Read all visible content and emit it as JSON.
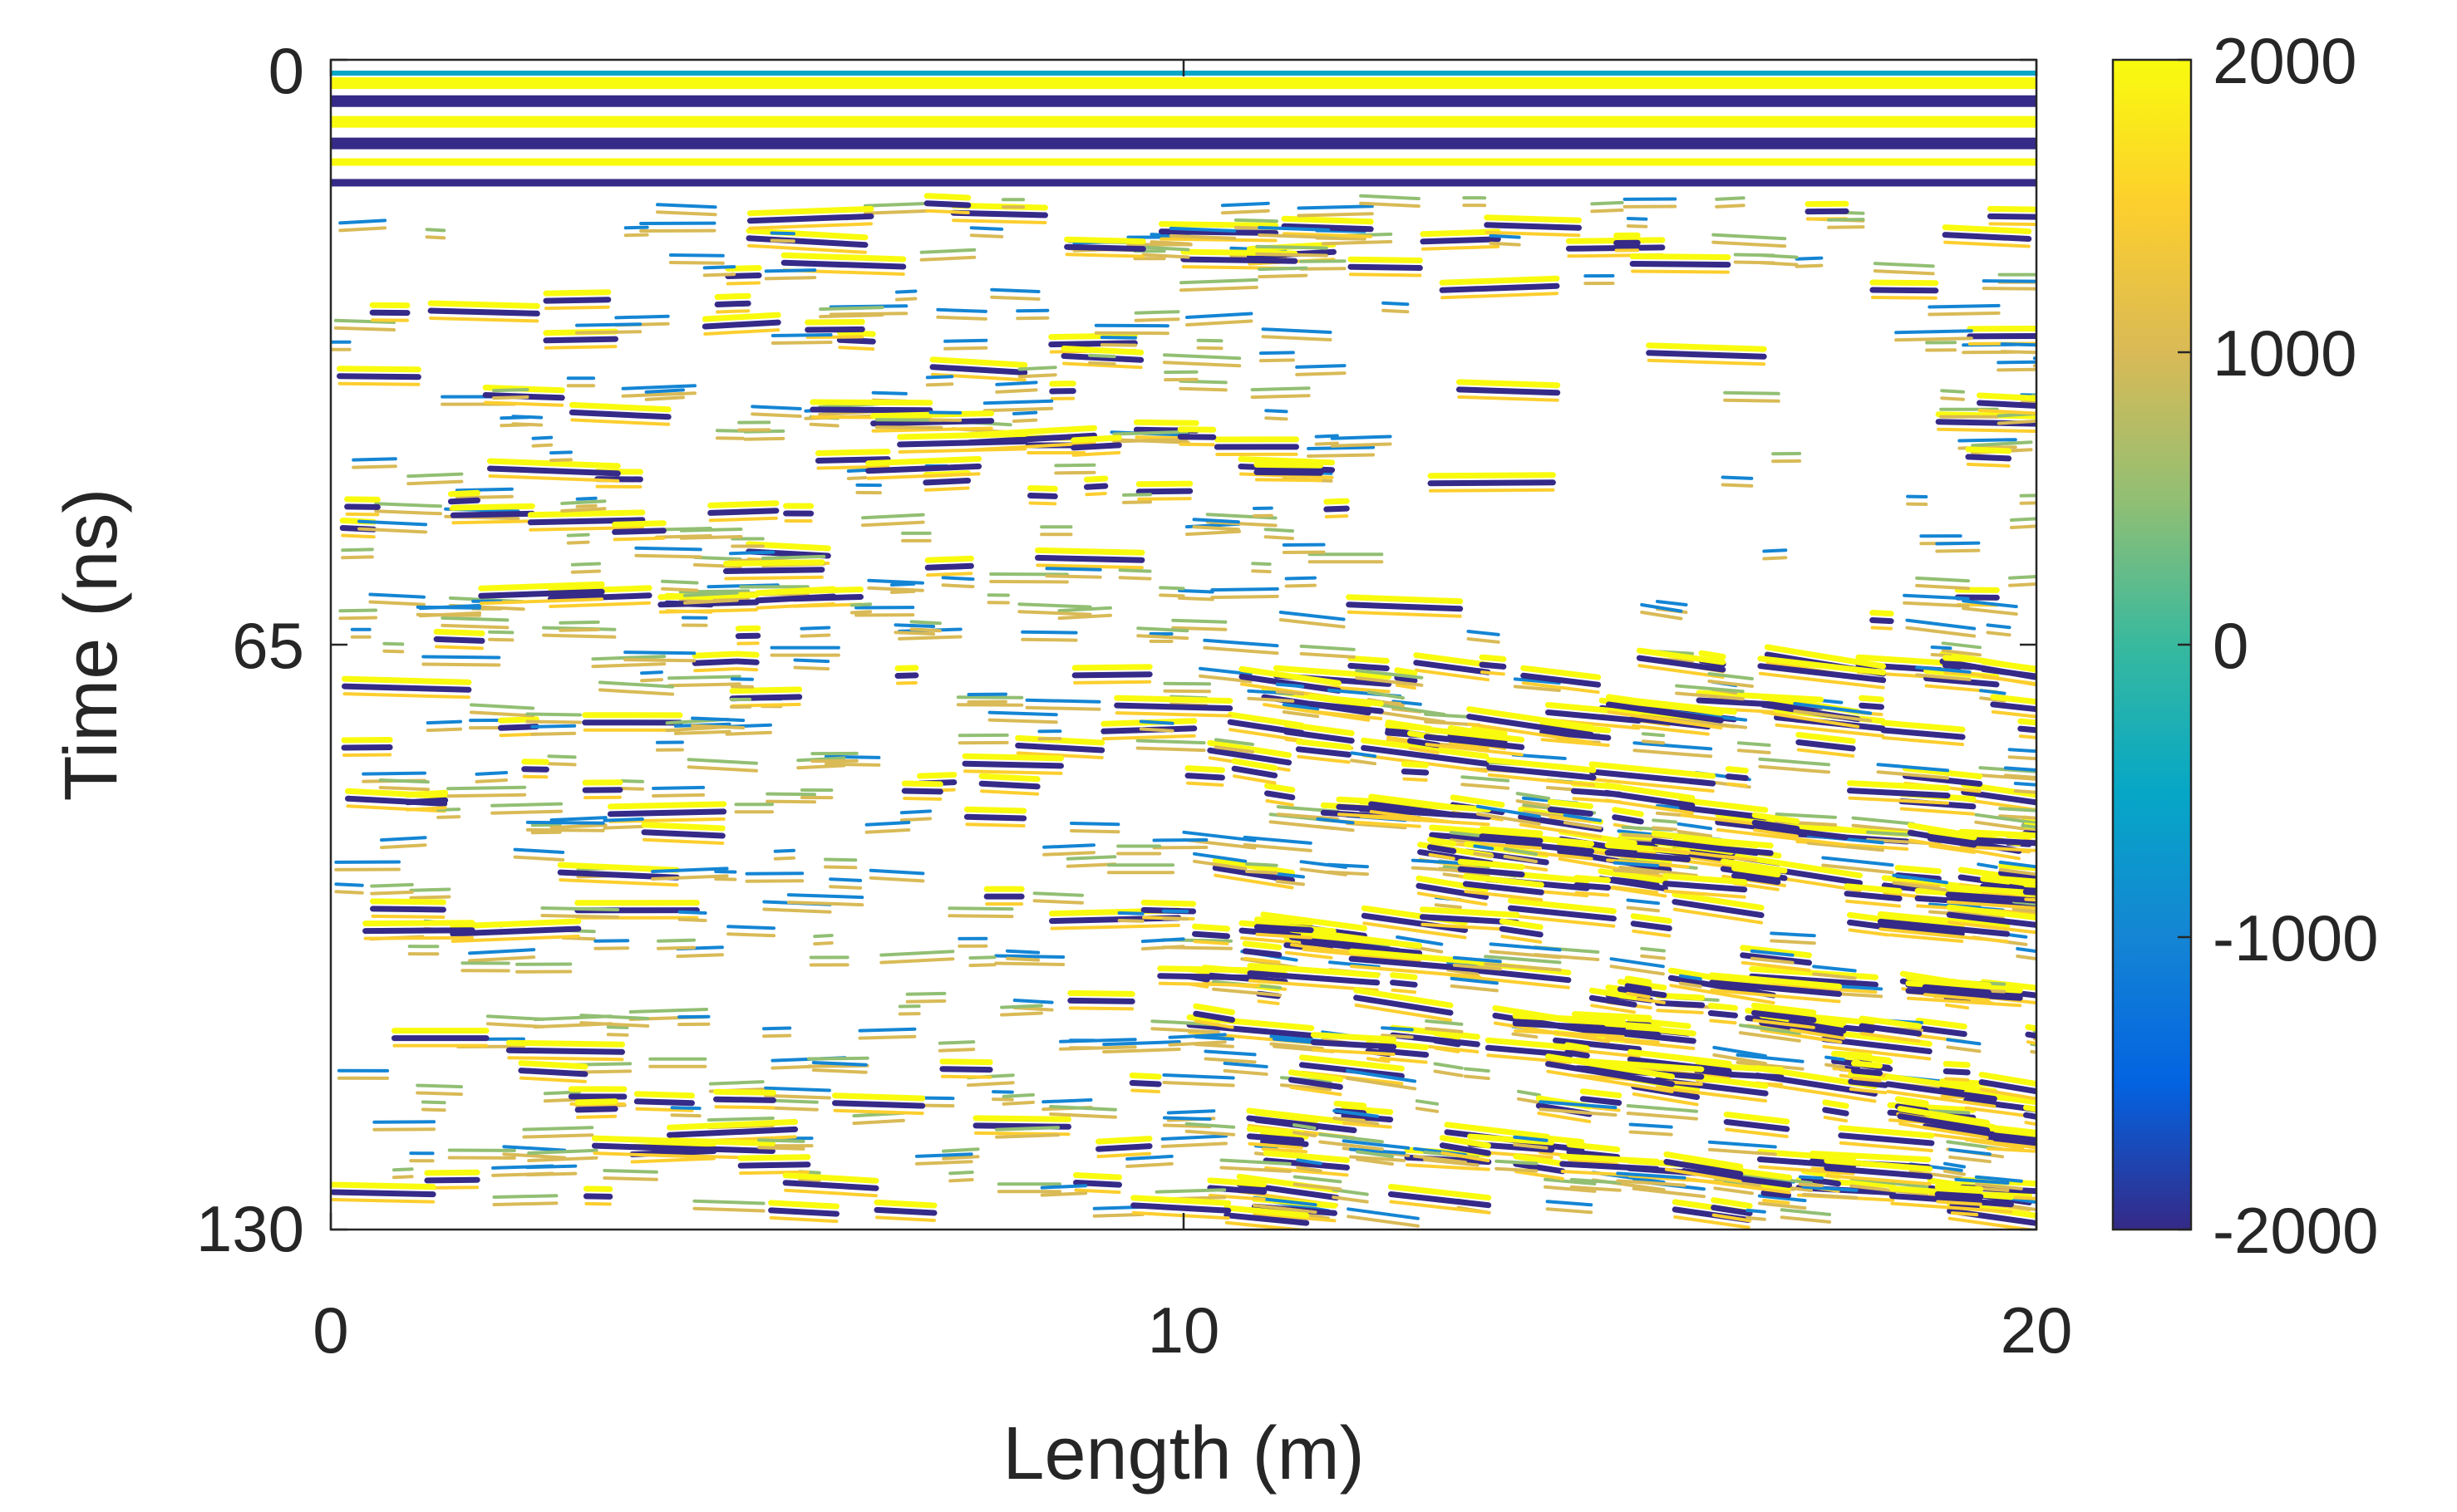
{
  "chart_data": {
    "type": "heatmap",
    "subtype": "filled contour (GPR radargram)",
    "title": "",
    "xlabel": "Length (m)",
    "ylabel": "Time (ns)",
    "xlim": [
      0,
      20
    ],
    "ylim": [
      0,
      130
    ],
    "y_direction": "reversed",
    "x_ticks": [
      0,
      10,
      20
    ],
    "x_tick_labels": [
      "0",
      "10",
      "20"
    ],
    "y_ticks": [
      0,
      65,
      130
    ],
    "y_tick_labels": [
      "0",
      "65",
      "130"
    ],
    "grid": false,
    "box": true,
    "colorbar": {
      "location": "right",
      "colormap": "parula",
      "clim": [
        -2000,
        2000
      ],
      "ticks": [
        2000,
        1000,
        0,
        -1000,
        -2000
      ],
      "tick_labels": [
        "2000",
        "1000",
        "0",
        "-1000",
        "-2000"
      ]
    },
    "data_description": {
      "quantity": "signal amplitude",
      "value_range": [
        -2000,
        2000
      ],
      "features": [
        {
          "kind": "strong horizontal reflections",
          "time_ns": [
            2,
            15
          ],
          "length_m": [
            0,
            20
          ]
        },
        {
          "kind": "sparse region (low amplitude)",
          "time_ns": [
            27,
            65
          ],
          "length_m": [
            12,
            18
          ]
        },
        {
          "kind": "dense dipping reflections",
          "time_ns": [
            65,
            130
          ],
          "length_m": [
            10,
            20
          ]
        },
        {
          "kind": "scattered reflections",
          "time_ns": [
            15,
            130
          ],
          "length_m": [
            0,
            10
          ]
        }
      ]
    }
  },
  "colors": {
    "axes": "#262626",
    "background": "#ffffff",
    "parula_stops": [
      "#352a87",
      "#0363e1",
      "#1485d4",
      "#06a7c6",
      "#38b99e",
      "#92bf73",
      "#d9ba56",
      "#fcce2e",
      "#f9fb0e"
    ]
  }
}
